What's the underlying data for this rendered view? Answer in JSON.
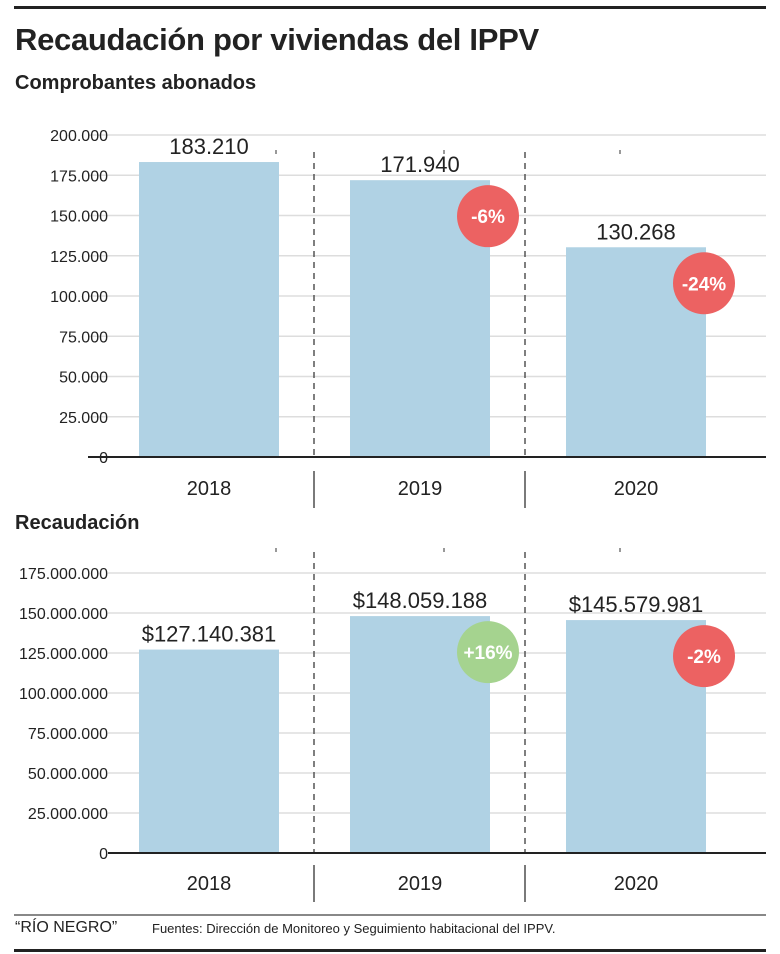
{
  "header": {
    "title": "Recaudación por viviendas del IPPV"
  },
  "colors": {
    "bar": "#b0d2e4",
    "negative": "#ec6262",
    "positive": "#a5d38f",
    "grid": "#dddddd",
    "axis": "#222222"
  },
  "chart_data": [
    {
      "type": "bar",
      "title": "Comprobantes abonados",
      "categories": [
        "2018",
        "2019",
        "2020"
      ],
      "values": [
        183210,
        171940,
        130268
      ],
      "value_labels": [
        "183.210",
        "171.940",
        "130.268"
      ],
      "changes": [
        null,
        {
          "label": "-6%",
          "sign": "negative"
        },
        {
          "label": "-24%",
          "sign": "negative"
        }
      ],
      "ylim": [
        0,
        200000
      ],
      "yticks": [
        0,
        25000,
        50000,
        75000,
        100000,
        125000,
        150000,
        175000,
        200000
      ],
      "ytick_labels": [
        "0",
        "25.000",
        "50.000",
        "75.000",
        "100.000",
        "125.000",
        "150.000",
        "175.000",
        "200.000"
      ],
      "grid": true,
      "xlabel": "",
      "ylabel": ""
    },
    {
      "type": "bar",
      "title": "Recaudación",
      "categories": [
        "2018",
        "2019",
        "2020"
      ],
      "values": [
        127140381,
        148059188,
        145579981
      ],
      "value_labels": [
        "$127.140.381",
        "$148.059.188",
        "$145.579.981"
      ],
      "changes": [
        null,
        {
          "label": "+16%",
          "sign": "positive"
        },
        {
          "label": "-2%",
          "sign": "negative"
        }
      ],
      "ylim": [
        0,
        175000000
      ],
      "yticks": [
        0,
        25000000,
        50000000,
        75000000,
        100000000,
        125000000,
        150000000,
        175000000
      ],
      "ytick_labels": [
        "0",
        "25.000.000",
        "50.000.000",
        "75.000.000",
        "100.000.000",
        "125.000.000",
        "150.000.000",
        "175.000.000"
      ],
      "grid": true,
      "xlabel": "",
      "ylabel": ""
    }
  ],
  "footer": {
    "credit": "“RÍO NEGRO”",
    "source": "Fuentes: Dirección de Monitoreo y Seguimiento habitacional del IPPV."
  }
}
